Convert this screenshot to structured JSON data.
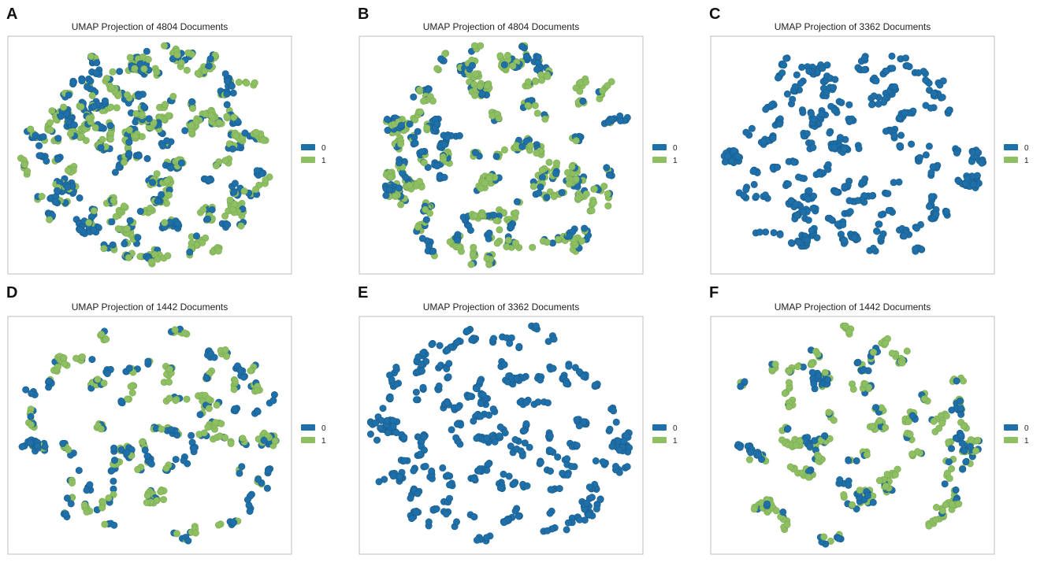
{
  "figure": {
    "description_free": true
  },
  "colors": {
    "class_0": "#1f6fa8",
    "class_1": "#8fbf63",
    "edge_0": "#195d8d",
    "edge_1": "#7aab52"
  },
  "chart_data": [
    {
      "type": "scatter",
      "letter": "A",
      "title": "UMAP Projection of 4804 Documents",
      "xlabel": "",
      "ylabel": "",
      "legend": {
        "entries": [
          "0",
          "1"
        ],
        "placement": "right-center"
      },
      "mix": 0.52,
      "seed": 11,
      "clusters": 125,
      "pointsPerCluster": 7,
      "spread": 0.022,
      "bigBlobs": [
        [
          0.17,
          0.64,
          0
        ],
        [
          0.46,
          0.08,
          1
        ],
        [
          0.26,
          0.83,
          0
        ]
      ]
    },
    {
      "type": "scatter",
      "letter": "B",
      "title": "UMAP Projection of 4804 Documents",
      "xlabel": "",
      "ylabel": "",
      "legend": {
        "entries": [
          "0",
          "1"
        ],
        "placement": "right-center"
      },
      "mix": 0.55,
      "seed": 23,
      "clusters": 80,
      "pointsPerCluster": 9,
      "spread": 0.026,
      "bigBlobs": [
        [
          0.09,
          0.36,
          0
        ],
        [
          0.09,
          0.66,
          0
        ],
        [
          0.53,
          0.07,
          1
        ],
        [
          0.42,
          0.2,
          1
        ],
        [
          0.58,
          0.45,
          1
        ]
      ]
    },
    {
      "type": "scatter",
      "letter": "C",
      "title": "UMAP Projection of 3362 Documents",
      "xlabel": "",
      "ylabel": "",
      "legend": {
        "entries": [
          "0",
          "1"
        ],
        "placement": "right-center"
      },
      "mix": 0.03,
      "seed": 37,
      "clusters": 130,
      "pointsPerCluster": 4,
      "spread": 0.016,
      "bigBlobs": [
        [
          0.04,
          0.51,
          0
        ],
        [
          0.95,
          0.62,
          0
        ]
      ]
    },
    {
      "type": "scatter",
      "letter": "D",
      "title": "UMAP Projection of 1442 Documents",
      "xlabel": "",
      "ylabel": "",
      "legend": {
        "entries": [
          "0",
          "1"
        ],
        "placement": "right-center"
      },
      "mix": 0.55,
      "seed": 41,
      "clusters": 70,
      "pointsPerCluster": 6,
      "spread": 0.022,
      "bigBlobs": [
        [
          0.95,
          0.52,
          0
        ],
        [
          0.52,
          0.78,
          1
        ],
        [
          0.07,
          0.55,
          0
        ]
      ]
    },
    {
      "type": "scatter",
      "letter": "E",
      "title": "UMAP Projection of 3362 Documents",
      "xlabel": "",
      "ylabel": "",
      "legend": {
        "entries": [
          "0",
          "1"
        ],
        "placement": "right-center"
      },
      "mix": 0.02,
      "seed": 53,
      "clusters": 130,
      "pointsPerCluster": 4,
      "spread": 0.016,
      "bigBlobs": [
        [
          0.07,
          0.46,
          0
        ],
        [
          0.96,
          0.55,
          0
        ]
      ]
    },
    {
      "type": "scatter",
      "letter": "F",
      "title": "UMAP Projection of 1442 Documents",
      "xlabel": "",
      "ylabel": "",
      "legend": {
        "entries": [
          "0",
          "1"
        ],
        "placement": "right-center"
      },
      "mix": 0.6,
      "seed": 67,
      "clusters": 70,
      "pointsPerCluster": 6,
      "spread": 0.022,
      "bigBlobs": [
        [
          0.95,
          0.55,
          0
        ],
        [
          0.55,
          0.78,
          1
        ],
        [
          0.38,
          0.24,
          0
        ]
      ]
    }
  ]
}
